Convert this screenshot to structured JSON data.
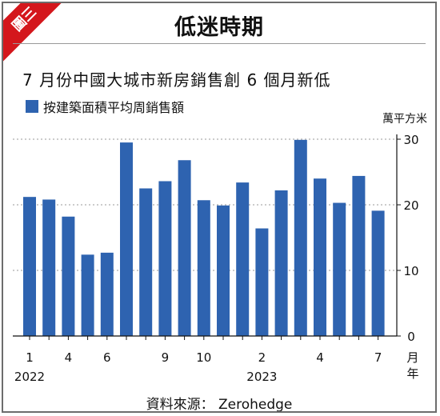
{
  "badge": "圖三",
  "title": "低迷時期",
  "chart_data": {
    "type": "bar",
    "title": "7 月份中國大城市新房銷售創 6 個月新低",
    "legend": "按建築面積平均周銷售額",
    "unit": "萬平方米",
    "x_axis_label": "月\n年",
    "series_color": "#2e63b0",
    "ylim": [
      0,
      30
    ],
    "yticks": [
      0,
      10,
      20,
      30
    ],
    "values": [
      21.2,
      20.8,
      18.2,
      12.4,
      12.7,
      29.5,
      22.5,
      23.6,
      26.8,
      20.7,
      19.9,
      23.4,
      16.4,
      22.2,
      29.9,
      24.0,
      20.3,
      24.4,
      19.1
    ],
    "xtick_labels": [
      {
        "index": 0,
        "label": "1"
      },
      {
        "index": 2,
        "label": "4"
      },
      {
        "index": 4,
        "label": "6"
      },
      {
        "index": 7,
        "label": "9"
      },
      {
        "index": 9,
        "label": "10"
      },
      {
        "index": 12,
        "label": "2"
      },
      {
        "index": 15,
        "label": "4"
      },
      {
        "index": 18,
        "label": "7"
      }
    ],
    "year_labels": [
      {
        "index": 0,
        "label": "2022"
      },
      {
        "index": 12,
        "label": "2023"
      }
    ]
  },
  "source": "資料來源： Zerohedge"
}
